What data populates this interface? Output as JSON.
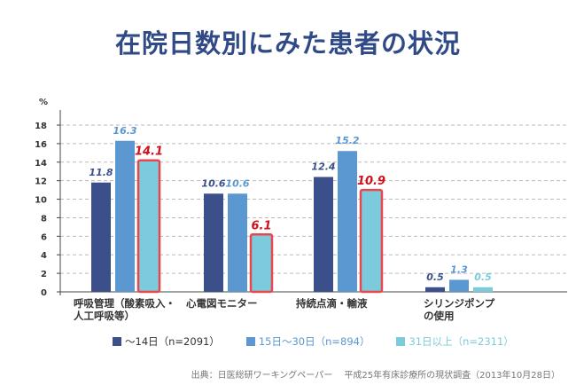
{
  "title": "在院日数別にみた患者の状況",
  "chart_data": {
    "type": "bar",
    "title": "在院日数別にみた患者の状況",
    "ylabel": "%",
    "ylim": [
      0,
      18
    ],
    "yticks": [
      0,
      2,
      4,
      6,
      8,
      10,
      12,
      14,
      16,
      18
    ],
    "grid": true,
    "legend_placement": "bottom",
    "categories": [
      [
        "呼吸管理（酸素吸入・",
        "人工呼吸等）"
      ],
      [
        "心電図モニター"
      ],
      [
        "持続点滴・輸液"
      ],
      [
        "シリンジポンプ",
        "の使用"
      ]
    ],
    "series": [
      {
        "name": "～14日（n=2091）",
        "color": "#3b4f8a",
        "values": [
          11.8,
          10.6,
          12.4,
          0.5
        ]
      },
      {
        "name": "15日～30日（n=894）",
        "color": "#5b97d0",
        "values": [
          16.3,
          10.6,
          15.2,
          1.3
        ]
      },
      {
        "name": "31日以上（n=2311）",
        "color": "#7ccbdc",
        "values": [
          14.1,
          6.1,
          10.9,
          0.5
        ]
      }
    ],
    "highlighted_series": "31日以上（n=2311）",
    "highlight_color": "#e8474c",
    "highlight_label_color": "#d0101a",
    "highlighted_categories": [
      0,
      1,
      2
    ]
  },
  "source": "出典：日医総研ワーキングペーパー　 平成25年有床診療所の現状調査（2013年10月28日）"
}
